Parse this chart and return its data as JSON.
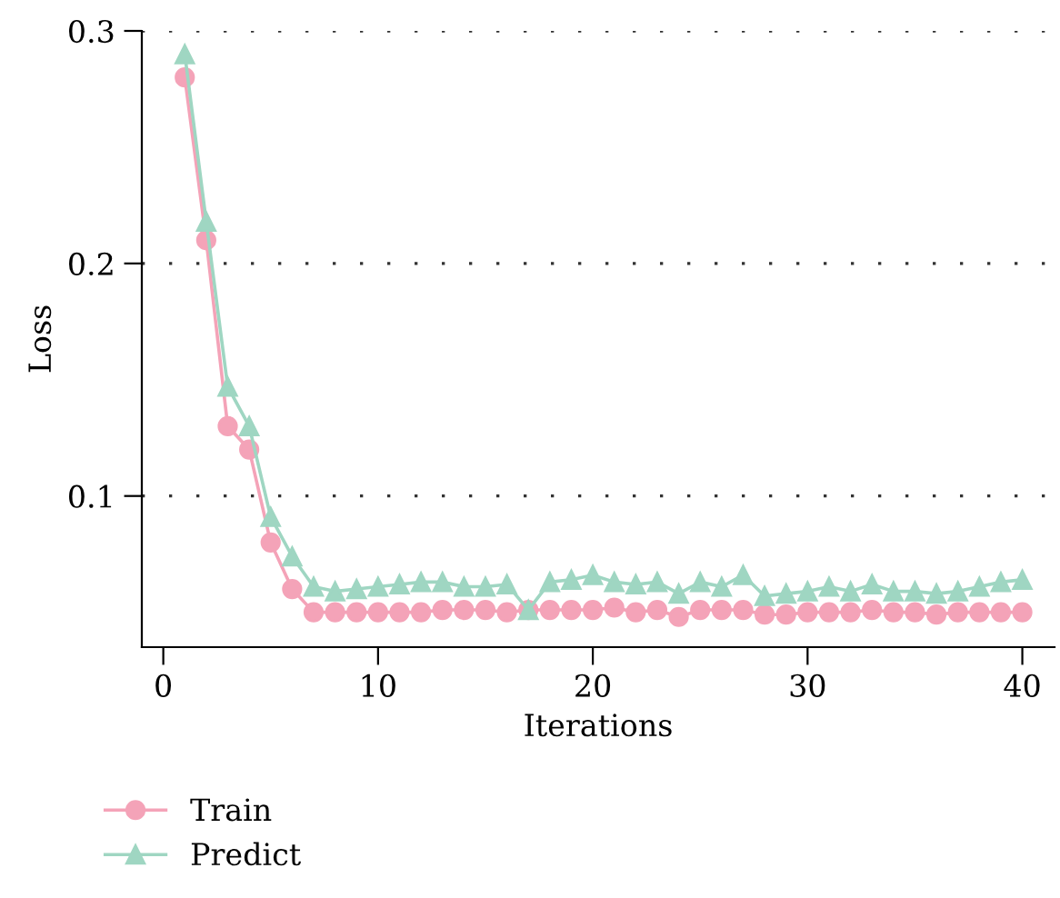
{
  "chart_data": {
    "type": "line",
    "xlabel": "Iterations",
    "ylabel": "Loss",
    "x": [
      1,
      2,
      3,
      4,
      5,
      6,
      7,
      8,
      9,
      10,
      11,
      12,
      13,
      14,
      15,
      16,
      17,
      18,
      19,
      20,
      21,
      22,
      23,
      24,
      25,
      26,
      27,
      28,
      29,
      30,
      31,
      32,
      33,
      34,
      35,
      36,
      37,
      38,
      39,
      40
    ],
    "series": [
      {
        "name": "Train",
        "color": "#f4a3b8",
        "marker": "circle",
        "values": [
          0.28,
          0.21,
          0.13,
          0.12,
          0.08,
          0.06,
          0.05,
          0.05,
          0.05,
          0.05,
          0.05,
          0.05,
          0.051,
          0.051,
          0.051,
          0.05,
          0.051,
          0.051,
          0.051,
          0.051,
          0.052,
          0.05,
          0.051,
          0.048,
          0.051,
          0.051,
          0.051,
          0.049,
          0.049,
          0.05,
          0.05,
          0.05,
          0.051,
          0.05,
          0.05,
          0.049,
          0.05,
          0.05,
          0.05,
          0.05
        ]
      },
      {
        "name": "Predict",
        "color": "#9fd6c2",
        "marker": "triangle",
        "values": [
          0.29,
          0.218,
          0.147,
          0.13,
          0.091,
          0.074,
          0.061,
          0.059,
          0.06,
          0.061,
          0.062,
          0.063,
          0.063,
          0.061,
          0.061,
          0.062,
          0.051,
          0.063,
          0.064,
          0.066,
          0.063,
          0.062,
          0.063,
          0.058,
          0.063,
          0.061,
          0.066,
          0.057,
          0.058,
          0.059,
          0.061,
          0.059,
          0.062,
          0.059,
          0.059,
          0.058,
          0.059,
          0.061,
          0.063,
          0.064
        ]
      }
    ],
    "xlim": [
      -1,
      41.5
    ],
    "xticks": [
      0,
      10,
      20,
      30,
      40
    ],
    "ylim": [
      0.035,
      0.3
    ],
    "yticks": [
      0.1,
      0.2,
      0.3
    ],
    "grid": "y",
    "legend": "bottom left",
    "line_style": "solid"
  }
}
